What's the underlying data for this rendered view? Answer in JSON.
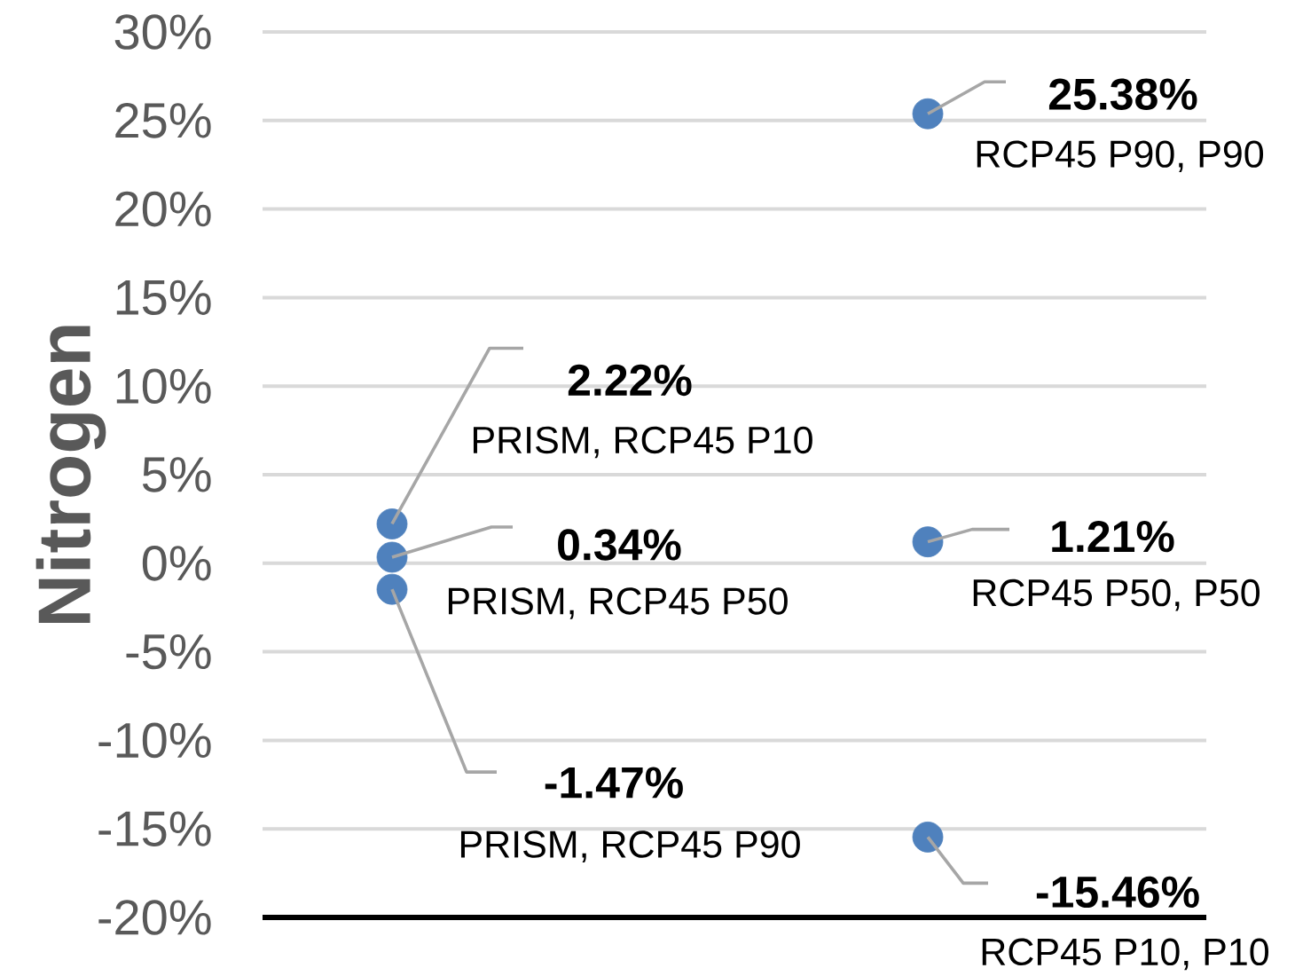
{
  "chart_data": {
    "type": "scatter",
    "ylabel": "Nitrogen",
    "categories": [
      null,
      null
    ],
    "ylim": [
      -20,
      30
    ],
    "yticks": [
      {
        "value": -20,
        "label": "-20%"
      },
      {
        "value": -15,
        "label": "-15%"
      },
      {
        "value": -10,
        "label": "-10%"
      },
      {
        "value": -5,
        "label": "-5%"
      },
      {
        "value": 0,
        "label": "0%"
      },
      {
        "value": 5,
        "label": "5%"
      },
      {
        "value": 10,
        "label": "10%"
      },
      {
        "value": 15,
        "label": "15%"
      },
      {
        "value": 20,
        "label": "20%"
      },
      {
        "value": 25,
        "label": "25%"
      },
      {
        "value": 30,
        "label": "30%"
      }
    ],
    "grid": "y",
    "marker": "circle",
    "tick_labels": "y",
    "series": [
      {
        "name": "PRISM, RCP45 P10",
        "color": "#4f81bd",
        "values": [
          2.22,
          null
        ],
        "value_labels": [
          "2.22%",
          null
        ]
      },
      {
        "name": "PRISM, RCP45 P50",
        "color": "#4f81bd",
        "values": [
          0.34,
          null
        ],
        "value_labels": [
          "0.34%",
          null
        ]
      },
      {
        "name": "PRISM, RCP45 P90",
        "color": "#4f81bd",
        "values": [
          -1.47,
          null
        ],
        "value_labels": [
          "-1.47%",
          null
        ]
      },
      {
        "name": "RCP45 P90, P90",
        "color": "#4f81bd",
        "values": [
          null,
          25.38
        ],
        "value_labels": [
          null,
          "25.38%"
        ]
      },
      {
        "name": "RCP45 P50, P50",
        "color": "#4f81bd",
        "values": [
          null,
          1.21
        ],
        "value_labels": [
          null,
          "1.21%"
        ]
      },
      {
        "name": "RCP45 P10, P10",
        "color": "#4f81bd",
        "values": [
          null,
          -15.46
        ],
        "value_labels": [
          null,
          "-15.46%"
        ]
      }
    ]
  }
}
